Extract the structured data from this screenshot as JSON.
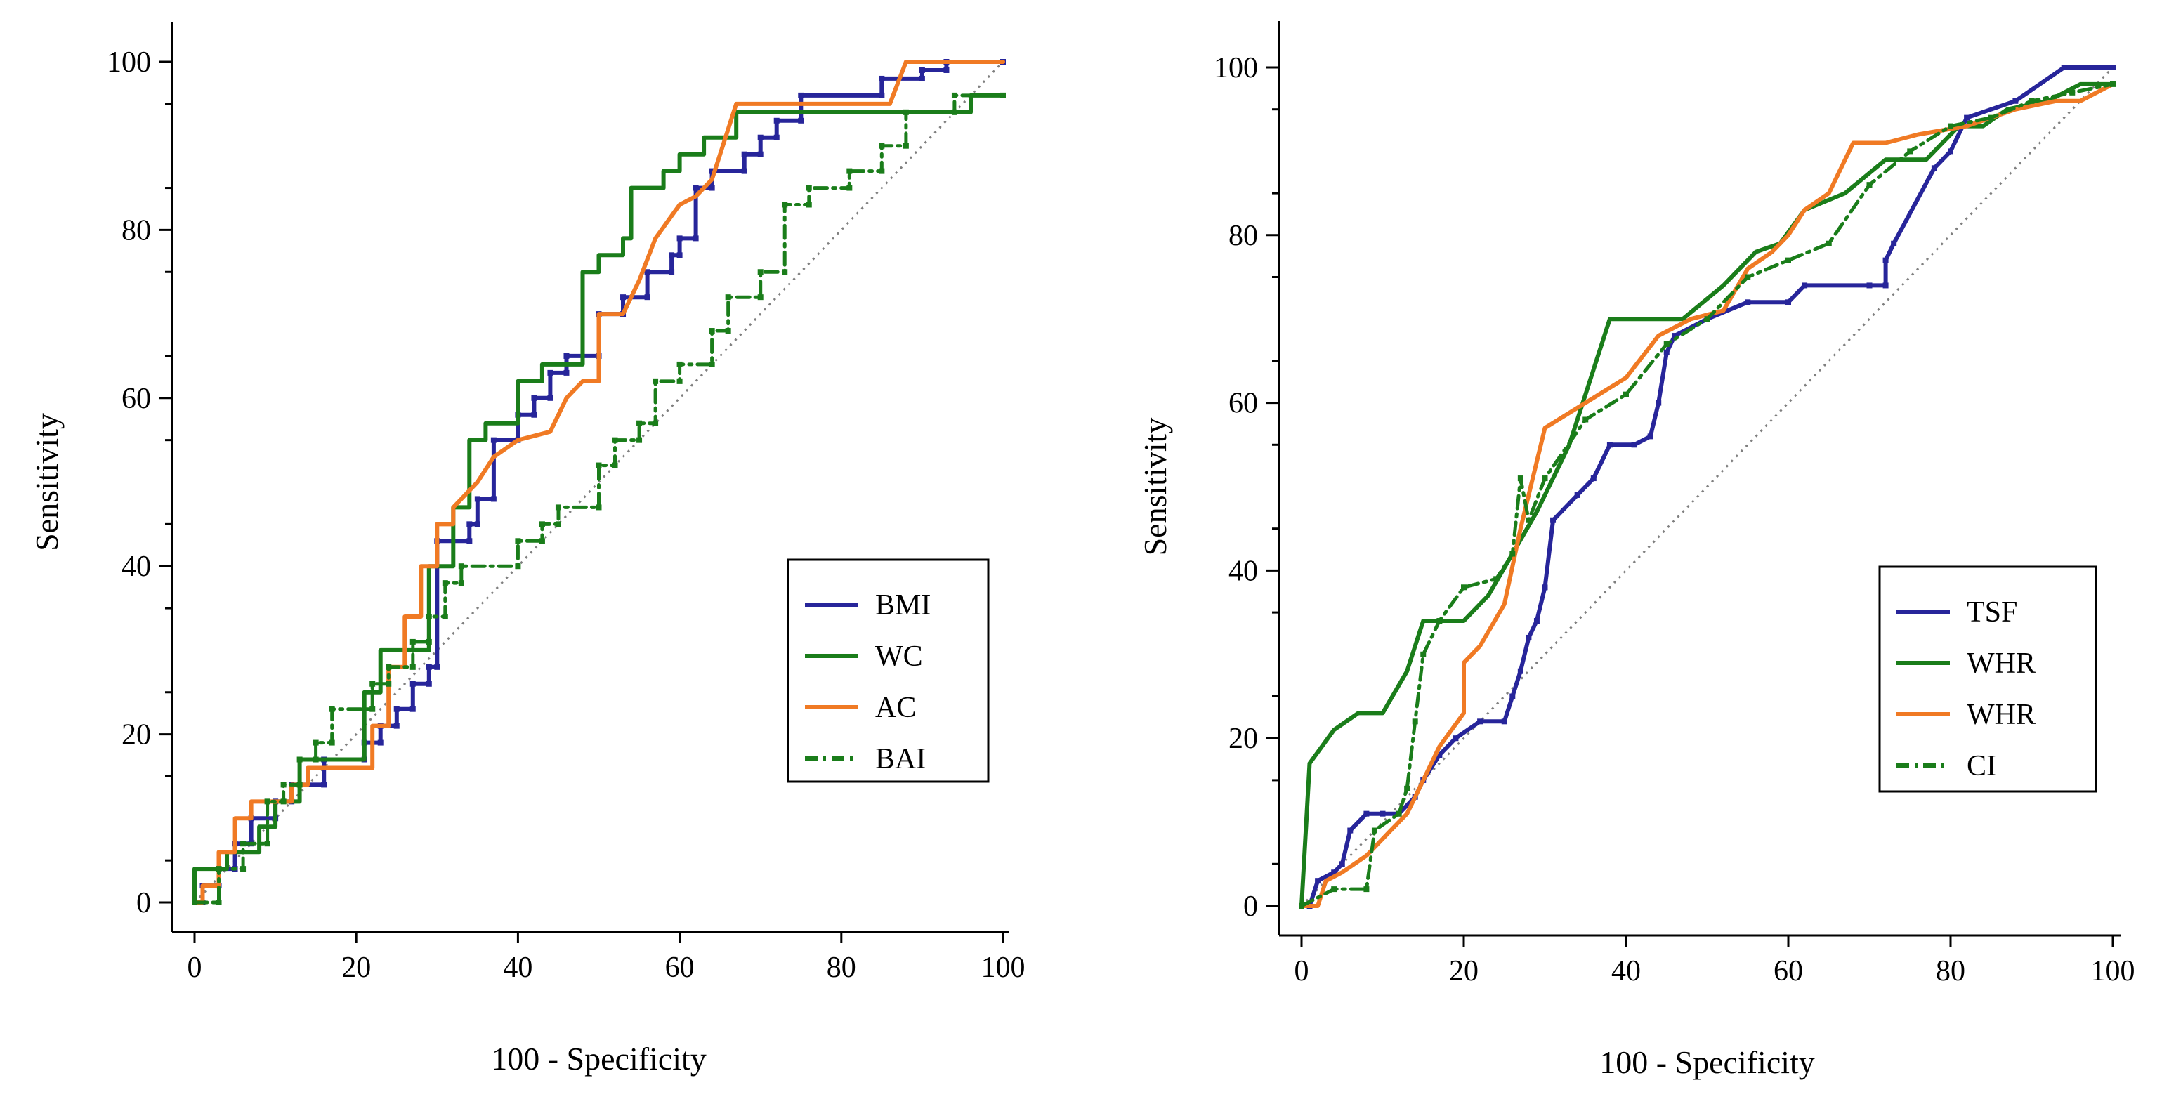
{
  "chart_data": [
    {
      "type": "line",
      "title": "",
      "xlabel": "100 - Specificity",
      "ylabel": "Sensitivity",
      "xlim": [
        0,
        100
      ],
      "ylim": [
        0,
        100
      ],
      "xticks": [
        "0",
        "20",
        "40",
        "60",
        "80",
        "100"
      ],
      "yticks": [
        "0",
        "20",
        "40",
        "60",
        "80",
        "100"
      ],
      "grid": false,
      "legend": "bottom-right",
      "reference_line": {
        "style": "dotted",
        "color": "#7f7f7f",
        "x": [
          0,
          100
        ],
        "y": [
          0,
          100
        ]
      },
      "series": [
        {
          "name": "BMI",
          "color": "#27259a",
          "style": "solid",
          "x": [
            0,
            1,
            1,
            3,
            3,
            5,
            5,
            7,
            7,
            10,
            10,
            12,
            12,
            16,
            16,
            21,
            21,
            23,
            23,
            25,
            25,
            27,
            27,
            29,
            29,
            30,
            30,
            34,
            34,
            35,
            35,
            37,
            37,
            40,
            40,
            42,
            42,
            44,
            44,
            46,
            46,
            50,
            50,
            53,
            53,
            56,
            56,
            59,
            59,
            60,
            60,
            62,
            62,
            64,
            64,
            68,
            68,
            70,
            70,
            72,
            72,
            75,
            75,
            85,
            85,
            90,
            90,
            93,
            93,
            100
          ],
          "y": [
            0,
            0,
            2,
            2,
            4,
            4,
            7,
            7,
            10,
            10,
            12,
            12,
            14,
            14,
            17,
            17,
            19,
            19,
            21,
            21,
            23,
            23,
            26,
            26,
            28,
            28,
            43,
            43,
            45,
            45,
            48,
            48,
            55,
            55,
            58,
            58,
            60,
            60,
            63,
            63,
            65,
            65,
            70,
            70,
            72,
            72,
            75,
            75,
            77,
            77,
            79,
            79,
            85,
            85,
            87,
            87,
            89,
            89,
            91,
            91,
            93,
            93,
            96,
            96,
            98,
            98,
            99,
            99,
            100,
            100
          ]
        },
        {
          "name": "WC",
          "color": "#1a7d1a",
          "style": "solid",
          "x": [
            0,
            0,
            4,
            4,
            8,
            8,
            10,
            10,
            13,
            13,
            21,
            21,
            23,
            23,
            29,
            29,
            32,
            32,
            34,
            34,
            36,
            36,
            40,
            40,
            43,
            43,
            48,
            48,
            50,
            50,
            53,
            53,
            54,
            54,
            58,
            58,
            60,
            60,
            63,
            63,
            67,
            67,
            96,
            96,
            100
          ],
          "y": [
            0,
            4,
            4,
            6,
            6,
            9,
            9,
            12,
            12,
            17,
            17,
            25,
            25,
            30,
            30,
            40,
            40,
            47,
            47,
            55,
            55,
            57,
            57,
            62,
            62,
            64,
            64,
            75,
            75,
            77,
            77,
            79,
            79,
            85,
            85,
            87,
            87,
            89,
            89,
            91,
            91,
            94,
            94,
            96,
            96
          ]
        },
        {
          "name": "AC",
          "color": "#f07a24",
          "style": "solid",
          "x": [
            0,
            1,
            1,
            3,
            3,
            5,
            5,
            7,
            7,
            12,
            12,
            14,
            14,
            22,
            22,
            24,
            24,
            26,
            26,
            28,
            28,
            30,
            30,
            32,
            32,
            35,
            37,
            40,
            44,
            45,
            46,
            47,
            48,
            50,
            50,
            53,
            55,
            57,
            60,
            62,
            64,
            65,
            67,
            86,
            88,
            100
          ],
          "y": [
            0,
            0,
            2,
            2,
            6,
            6,
            10,
            10,
            12,
            12,
            14,
            14,
            16,
            16,
            21,
            21,
            28,
            28,
            34,
            34,
            40,
            40,
            45,
            45,
            47,
            50,
            53,
            55,
            56,
            58,
            60,
            61,
            62,
            62,
            70,
            70,
            74,
            79,
            83,
            84,
            86,
            89,
            95,
            95,
            100,
            100
          ]
        },
        {
          "name": "BAI",
          "color": "#1a7d1a",
          "style": "dashdot",
          "x": [
            0,
            3,
            3,
            6,
            6,
            9,
            9,
            11,
            11,
            13,
            13,
            15,
            15,
            17,
            17,
            22,
            22,
            24,
            24,
            27,
            27,
            29,
            29,
            31,
            31,
            33,
            33,
            40,
            40,
            43,
            43,
            45,
            45,
            50,
            50,
            52,
            52,
            55,
            55,
            57,
            57,
            60,
            60,
            64,
            64,
            66,
            66,
            70,
            70,
            73,
            73,
            76,
            76,
            81,
            81,
            85,
            85,
            88,
            88,
            94,
            94,
            100
          ],
          "y": [
            0,
            0,
            4,
            4,
            7,
            7,
            12,
            12,
            14,
            14,
            17,
            17,
            19,
            19,
            23,
            23,
            26,
            26,
            28,
            28,
            31,
            31,
            34,
            34,
            38,
            38,
            40,
            40,
            43,
            43,
            45,
            45,
            47,
            47,
            52,
            52,
            55,
            55,
            57,
            57,
            62,
            62,
            64,
            64,
            68,
            68,
            72,
            72,
            75,
            75,
            83,
            83,
            85,
            85,
            87,
            87,
            90,
            90,
            94,
            94,
            96,
            96
          ]
        }
      ]
    },
    {
      "type": "line",
      "title": "",
      "xlabel": "100 - Specificity",
      "ylabel": "Sensitivity",
      "xlim": [
        0,
        100
      ],
      "ylim": [
        0,
        100
      ],
      "xticks": [
        "0",
        "20",
        "40",
        "60",
        "80",
        "100"
      ],
      "yticks": [
        "0",
        "20",
        "40",
        "60",
        "80",
        "100"
      ],
      "grid": false,
      "legend": "bottom-right",
      "reference_line": {
        "style": "dotted",
        "color": "#7f7f7f",
        "x": [
          0,
          100
        ],
        "y": [
          0,
          100
        ]
      },
      "series": [
        {
          "name": "TSF",
          "color": "#27259a",
          "style": "solid",
          "x": [
            0,
            1,
            2,
            4,
            5,
            6,
            8,
            10,
            12,
            14,
            15,
            17,
            19,
            22,
            25,
            26,
            27,
            28,
            29,
            30,
            31,
            34,
            36,
            38,
            41,
            43,
            44,
            45,
            46,
            50,
            55,
            60,
            62,
            70,
            72,
            72,
            73,
            78,
            80,
            82,
            88,
            94,
            100
          ],
          "y": [
            0,
            0,
            3,
            4,
            5,
            9,
            11,
            11,
            11,
            13,
            15,
            18,
            20,
            22,
            22,
            25,
            28,
            32,
            34,
            38,
            46,
            49,
            51,
            55,
            55,
            56,
            60,
            66,
            68,
            70,
            72,
            72,
            74,
            74,
            74,
            77,
            79,
            88,
            90,
            94,
            96,
            100,
            100
          ]
        },
        {
          "name": "WHR",
          "color": "#1a7d1a",
          "style": "solid",
          "x": [
            0,
            1,
            4,
            7,
            10,
            13,
            15,
            20,
            23,
            26,
            29,
            33,
            38,
            47,
            52,
            56,
            59,
            62,
            67,
            72,
            77,
            81,
            84,
            87,
            92,
            96,
            100
          ],
          "y": [
            0,
            17,
            21,
            23,
            23,
            28,
            34,
            34,
            37,
            42,
            47,
            55,
            70,
            70,
            74,
            78,
            79,
            83,
            85,
            89,
            89,
            93,
            93,
            95,
            96,
            98,
            98
          ]
        },
        {
          "name": "WHR",
          "color": "#f07a24",
          "style": "solid",
          "x": [
            0,
            2,
            3,
            5,
            8,
            11,
            13,
            15,
            17,
            20,
            20,
            22,
            25,
            27,
            30,
            35,
            40,
            44,
            48,
            52,
            55,
            58,
            60,
            62,
            65,
            68,
            72,
            76,
            82,
            88,
            93,
            96,
            100
          ],
          "y": [
            0,
            0,
            3,
            4,
            6,
            9,
            11,
            15,
            19,
            23,
            29,
            31,
            36,
            45,
            57,
            60,
            63,
            68,
            70,
            71,
            76,
            78,
            80,
            83,
            85,
            91,
            91,
            92,
            93,
            95,
            96,
            96,
            98
          ]
        },
        {
          "name": "CI",
          "color": "#1a7d1a",
          "style": "dashdot",
          "x": [
            0,
            4,
            8,
            9,
            12,
            13,
            14,
            15,
            17,
            20,
            24,
            26,
            27,
            28,
            30,
            35,
            40,
            45,
            50,
            55,
            60,
            65,
            70,
            75,
            80,
            85,
            90,
            95,
            100
          ],
          "y": [
            0,
            2,
            2,
            9,
            11,
            14,
            22,
            30,
            34,
            38,
            39,
            42,
            51,
            46,
            51,
            58,
            61,
            67,
            70,
            75,
            77,
            79,
            86,
            90,
            93,
            94,
            96,
            97,
            98
          ]
        }
      ]
    }
  ]
}
